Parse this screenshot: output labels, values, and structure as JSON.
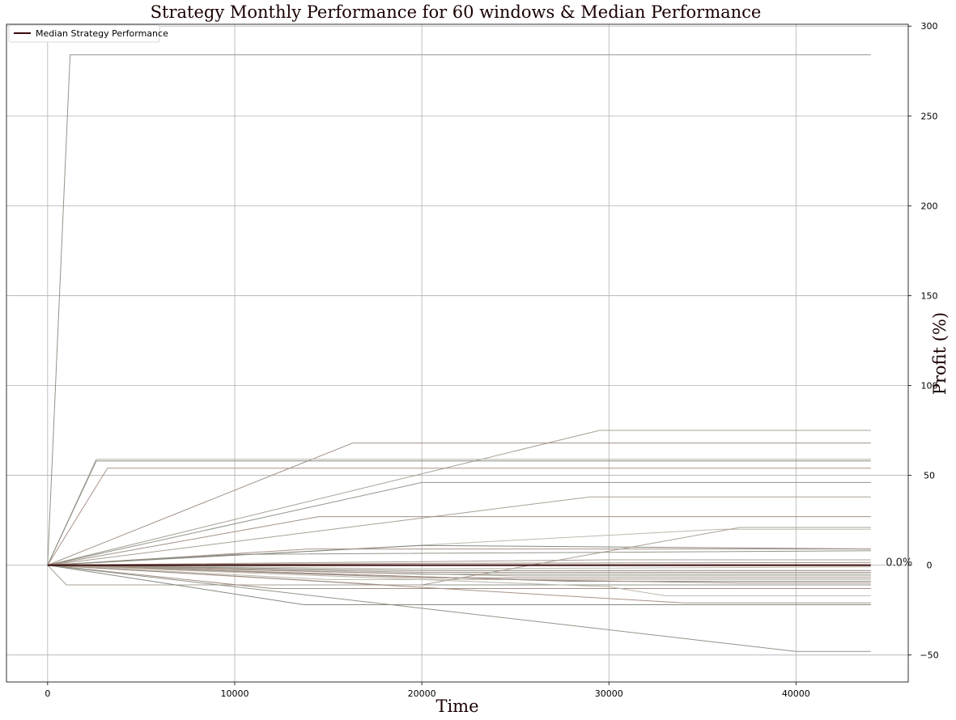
{
  "chart_data": {
    "type": "line",
    "title": "Strategy Monthly Performance for 60 windows & Median Performance",
    "xlabel": "Time",
    "ylabel": "Profit (%)",
    "xlim": [
      -2200,
      46000
    ],
    "ylim": [
      -65,
      301
    ],
    "xticks": [
      0,
      10000,
      20000,
      30000,
      40000
    ],
    "yticks": [
      -50,
      0,
      50,
      100,
      150,
      200,
      250,
      300
    ],
    "y_axis_side": "right",
    "grid": true,
    "legend": {
      "placement": "top-left",
      "entries": [
        "Median Strategy Performance"
      ]
    },
    "annotation": {
      "text": "0.0%",
      "x": 44800,
      "y": 0.0
    },
    "median_color": "#3b0a0a",
    "window_colors": [
      "#8b8f82",
      "#a39a8e",
      "#9c8a7e",
      "#b8b3a6",
      "#7e8479",
      "#a48c82"
    ],
    "series": [
      {
        "name": "Median Strategy Performance",
        "x": [
          0,
          44000
        ],
        "y": [
          0,
          0
        ]
      },
      {
        "x": [
          0,
          1200,
          44000
        ],
        "y": [
          0,
          284,
          284
        ]
      },
      {
        "x": [
          0,
          29500,
          44000
        ],
        "y": [
          0,
          75,
          75
        ]
      },
      {
        "x": [
          0,
          16300,
          44000
        ],
        "y": [
          0,
          68,
          68
        ]
      },
      {
        "x": [
          0,
          2600,
          44000
        ],
        "y": [
          0,
          59,
          59
        ]
      },
      {
        "x": [
          0,
          2600,
          44000
        ],
        "y": [
          0,
          58,
          58
        ]
      },
      {
        "x": [
          0,
          3200,
          44000
        ],
        "y": [
          0,
          54,
          54
        ]
      },
      {
        "x": [
          0,
          20000,
          44000
        ],
        "y": [
          0,
          46,
          46
        ]
      },
      {
        "x": [
          0,
          29000,
          44000
        ],
        "y": [
          0,
          38,
          38
        ]
      },
      {
        "x": [
          0,
          14500,
          44000
        ],
        "y": [
          0,
          27,
          27
        ]
      },
      {
        "x": [
          0,
          36000,
          44000
        ],
        "y": [
          0,
          20,
          20
        ]
      },
      {
        "x": [
          0,
          20000,
          44000
        ],
        "y": [
          0,
          11,
          9
        ]
      },
      {
        "x": [
          0,
          14000,
          44000
        ],
        "y": [
          0,
          9,
          9
        ]
      },
      {
        "x": [
          0,
          10000,
          44000
        ],
        "y": [
          0,
          6,
          8
        ]
      },
      {
        "x": [
          0,
          30000,
          44000
        ],
        "y": [
          0,
          3,
          3
        ]
      },
      {
        "x": [
          0,
          20000,
          44000
        ],
        "y": [
          0,
          1,
          1.5
        ]
      },
      {
        "x": [
          0,
          20000,
          44000
        ],
        "y": [
          0,
          -2,
          -1
        ]
      },
      {
        "x": [
          0,
          20000,
          44000
        ],
        "y": [
          0,
          -3,
          -3
        ]
      },
      {
        "x": [
          0,
          20000,
          44000
        ],
        "y": [
          0,
          -4,
          -4
        ]
      },
      {
        "x": [
          0,
          20000,
          44000
        ],
        "y": [
          0,
          -5,
          -5
        ]
      },
      {
        "x": [
          0,
          25000,
          44000
        ],
        "y": [
          0,
          -6,
          -6
        ]
      },
      {
        "x": [
          0,
          20000,
          44000
        ],
        "y": [
          0,
          -7,
          -7
        ]
      },
      {
        "x": [
          0,
          15000,
          44000
        ],
        "y": [
          0,
          -8,
          -8
        ]
      },
      {
        "x": [
          0,
          28000,
          44000
        ],
        "y": [
          0,
          -9,
          -9
        ]
      },
      {
        "x": [
          0,
          25000,
          37000,
          44000
        ],
        "y": [
          0,
          -8,
          -10,
          -10
        ]
      },
      {
        "x": [
          0,
          18000,
          44000
        ],
        "y": [
          0,
          -11,
          -11
        ]
      },
      {
        "x": [
          0,
          1000,
          20000,
          37000,
          44000
        ],
        "y": [
          0,
          -11,
          -11,
          21,
          21
        ]
      },
      {
        "x": [
          0,
          12000,
          44000
        ],
        "y": [
          0,
          -13,
          -13
        ]
      },
      {
        "x": [
          0,
          30000,
          33000,
          44000
        ],
        "y": [
          0,
          -12,
          -17,
          -17
        ]
      },
      {
        "x": [
          0,
          13700,
          44000
        ],
        "y": [
          0,
          -22,
          -22
        ]
      },
      {
        "x": [
          0,
          34000,
          44000
        ],
        "y": [
          0,
          -21,
          -21
        ]
      },
      {
        "x": [
          0,
          40000,
          44000
        ],
        "y": [
          0,
          -48,
          -48
        ]
      }
    ]
  }
}
